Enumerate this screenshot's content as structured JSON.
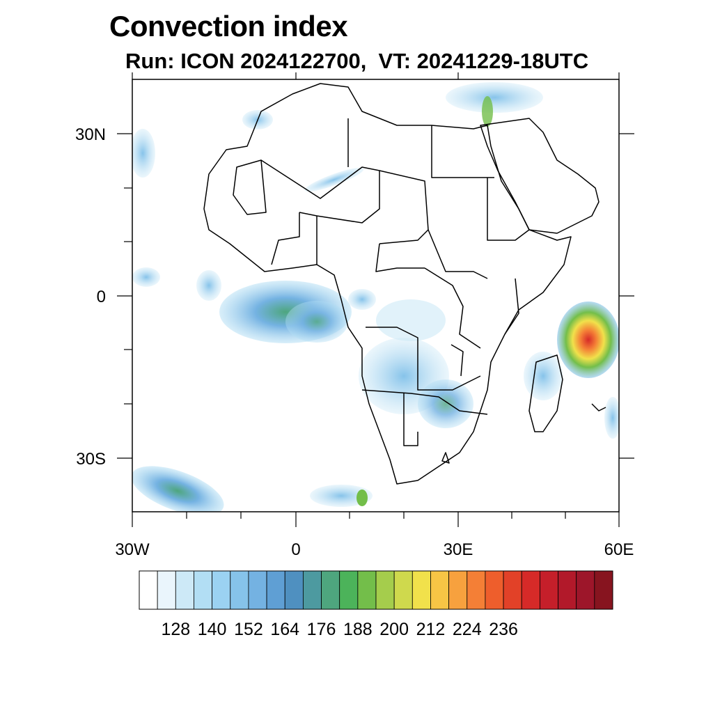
{
  "title": "Convection index",
  "subtitle": "Run: ICON 2024122700,  VT: 20241229-18UTC",
  "axes": {
    "lon_labels": [
      "30W",
      "0",
      "30E",
      "60E"
    ],
    "lat_labels": [
      "30N",
      "0",
      "30S"
    ]
  },
  "colorbar": {
    "labels": [
      "128",
      "140",
      "152",
      "164",
      "176",
      "188",
      "200",
      "212",
      "224",
      "236"
    ],
    "colors": [
      "#ffffff",
      "#eaf5fc",
      "#cde9f7",
      "#b2def4",
      "#9bd2f2",
      "#86c3ea",
      "#74b2e2",
      "#5f9fd4",
      "#4f90c0",
      "#4d9aa0",
      "#4ea67e",
      "#4cb35a",
      "#73be4a",
      "#a5cd4c",
      "#cfd94d",
      "#f1e14b",
      "#f7c545",
      "#f7a13e",
      "#f47f36",
      "#ee5e2c",
      "#e24128",
      "#d62a28",
      "#c51f2a",
      "#b2192a",
      "#9d162a",
      "#87141f"
    ]
  },
  "map_data": {
    "region": "Africa",
    "lon_range": [
      -30,
      60
    ],
    "lat_range": [
      -40,
      40
    ],
    "projection": "cylindrical equidistant",
    "variable": "Convection index"
  }
}
